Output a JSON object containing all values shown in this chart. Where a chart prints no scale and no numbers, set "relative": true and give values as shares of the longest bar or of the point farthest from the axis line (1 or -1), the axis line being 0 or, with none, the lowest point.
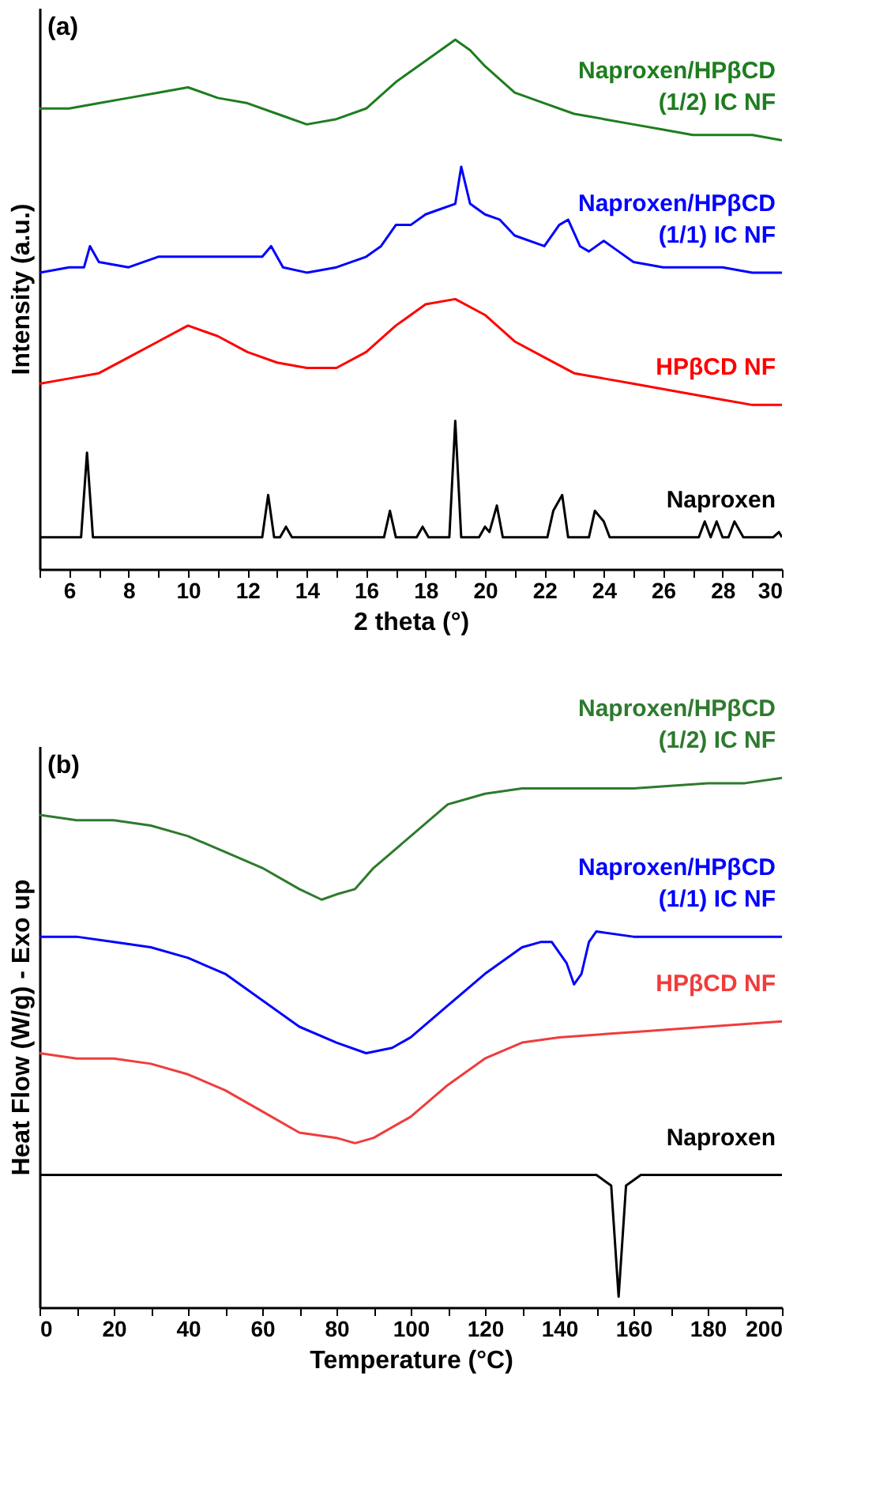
{
  "chart_data": [
    {
      "type": "line",
      "title": "(a)",
      "xlabel": "2 theta (°)",
      "ylabel": "Intensity (a.u.)",
      "relative": true,
      "grid": false,
      "xlim": [
        5,
        30
      ],
      "xticks": [
        {
          "value": 5,
          "label": null
        },
        6,
        {
          "value": 7,
          "label": null
        },
        8,
        {
          "value": 9,
          "label": null
        },
        10,
        {
          "value": 11,
          "label": null
        },
        12,
        {
          "value": 13,
          "label": null
        },
        14,
        {
          "value": 15,
          "label": null
        },
        16,
        {
          "value": 17,
          "label": null
        },
        18,
        {
          "value": 19,
          "label": null
        },
        20,
        {
          "value": 21,
          "label": null
        },
        22,
        {
          "value": 23,
          "label": null
        },
        24,
        {
          "value": 25,
          "label": null
        },
        26,
        {
          "value": 27,
          "label": null
        },
        28,
        {
          "value": 29,
          "label": null
        },
        30
      ],
      "series": [
        {
          "name": "Naproxen",
          "color": "#000000",
          "x": [
            5,
            6.4,
            6.6,
            6.8,
            12.5,
            12.7,
            12.9,
            13.1,
            13.3,
            13.5,
            16.6,
            16.8,
            17.0,
            17.7,
            17.9,
            18.1,
            18.8,
            19.0,
            19.2,
            19.8,
            20.0,
            20.15,
            20.4,
            20.6,
            22.1,
            22.3,
            22.6,
            22.8,
            23.5,
            23.7,
            24.0,
            24.2,
            27.2,
            27.4,
            27.6,
            27.8,
            28.0,
            28.2,
            28.4,
            28.7,
            29.7,
            29.9,
            30
          ],
          "values": [
            0.06,
            0.06,
            0.22,
            0.06,
            0.06,
            0.14,
            0.06,
            0.06,
            0.08,
            0.06,
            0.06,
            0.11,
            0.06,
            0.06,
            0.08,
            0.06,
            0.06,
            0.28,
            0.06,
            0.06,
            0.08,
            0.07,
            0.12,
            0.06,
            0.06,
            0.11,
            0.14,
            0.06,
            0.06,
            0.11,
            0.09,
            0.06,
            0.06,
            0.09,
            0.06,
            0.09,
            0.06,
            0.06,
            0.09,
            0.06,
            0.06,
            0.07,
            0.06
          ]
        },
        {
          "name": "HPβCD NF",
          "color": "#ff0000",
          "x": [
            5,
            6,
            7,
            8,
            9,
            10,
            11,
            12,
            13,
            14,
            15,
            16,
            17,
            18,
            19,
            20,
            21,
            22,
            23,
            24,
            25,
            26,
            27,
            28,
            29,
            30
          ],
          "values": [
            0.35,
            0.36,
            0.37,
            0.4,
            0.43,
            0.46,
            0.44,
            0.41,
            0.39,
            0.38,
            0.38,
            0.41,
            0.46,
            0.5,
            0.51,
            0.48,
            0.43,
            0.4,
            0.37,
            0.36,
            0.35,
            0.34,
            0.33,
            0.32,
            0.31,
            0.31
          ]
        },
        {
          "name": "Naproxen/HPβCD (1/1) IC NF",
          "color": "#0000ff",
          "x": [
            5,
            6,
            6.5,
            6.7,
            7,
            8,
            9,
            10,
            11,
            12,
            12.5,
            12.8,
            13.2,
            14,
            15,
            16,
            16.5,
            17,
            17.5,
            18,
            18.5,
            19,
            19.2,
            19.5,
            20,
            20.5,
            21,
            22,
            22.5,
            22.8,
            23.2,
            23.5,
            24,
            24.5,
            25,
            26,
            27,
            28,
            29,
            30
          ],
          "values": [
            0.56,
            0.57,
            0.57,
            0.61,
            0.58,
            0.57,
            0.59,
            0.59,
            0.59,
            0.59,
            0.59,
            0.61,
            0.57,
            0.56,
            0.57,
            0.59,
            0.61,
            0.65,
            0.65,
            0.67,
            0.68,
            0.69,
            0.76,
            0.69,
            0.67,
            0.66,
            0.63,
            0.61,
            0.65,
            0.66,
            0.61,
            0.6,
            0.62,
            0.6,
            0.58,
            0.57,
            0.57,
            0.57,
            0.56,
            0.56
          ]
        },
        {
          "name": "Naproxen/HPβCD (1/2) IC NF",
          "color": "#1e7d1e",
          "x": [
            5,
            6,
            7,
            8,
            9,
            10,
            11,
            12,
            13,
            14,
            15,
            16,
            17,
            18,
            19,
            19.5,
            20,
            21,
            22,
            23,
            24,
            25,
            26,
            27,
            28,
            29,
            30
          ],
          "values": [
            0.87,
            0.87,
            0.88,
            0.89,
            0.9,
            0.91,
            0.89,
            0.88,
            0.86,
            0.84,
            0.85,
            0.87,
            0.92,
            0.96,
            1.0,
            0.98,
            0.95,
            0.9,
            0.88,
            0.86,
            0.85,
            0.84,
            0.83,
            0.82,
            0.82,
            0.82,
            0.81
          ]
        }
      ]
    },
    {
      "type": "line",
      "title": "(b)",
      "xlabel": "Temperature (°C)",
      "ylabel": "Heat Flow (W/g) - Exo up",
      "relative": true,
      "grid": false,
      "xlim": [
        0,
        200
      ],
      "xticks": [
        0,
        {
          "value": 10,
          "label": null
        },
        20,
        {
          "value": 30,
          "label": null
        },
        40,
        {
          "value": 50,
          "label": null
        },
        60,
        {
          "value": 70,
          "label": null
        },
        80,
        {
          "value": 90,
          "label": null
        },
        100,
        {
          "value": 110,
          "label": null
        },
        120,
        {
          "value": 130,
          "label": null
        },
        140,
        {
          "value": 150,
          "label": null
        },
        160,
        {
          "value": 170,
          "label": null
        },
        180,
        {
          "value": 190,
          "label": null
        },
        200
      ],
      "series": [
        {
          "name": "Naproxen",
          "color": "#000000",
          "x": [
            0,
            100,
            140,
            150,
            154,
            156,
            158,
            162,
            200
          ],
          "values": [
            0.25,
            0.25,
            0.25,
            0.25,
            0.23,
            0.02,
            0.23,
            0.25,
            0.25
          ]
        },
        {
          "name": "HPβCD NF",
          "color": "#f03c3c",
          "x": [
            0,
            10,
            20,
            30,
            40,
            50,
            60,
            70,
            80,
            85,
            90,
            100,
            110,
            120,
            130,
            140,
            160,
            180,
            200
          ],
          "values": [
            0.48,
            0.47,
            0.47,
            0.46,
            0.44,
            0.41,
            0.37,
            0.33,
            0.32,
            0.31,
            0.32,
            0.36,
            0.42,
            0.47,
            0.5,
            0.51,
            0.52,
            0.53,
            0.54
          ]
        },
        {
          "name": "Naproxen/HPβCD (1/1) IC NF",
          "color": "#0000ff",
          "x": [
            0,
            10,
            20,
            30,
            40,
            50,
            60,
            70,
            80,
            88,
            95,
            100,
            110,
            120,
            130,
            135,
            138,
            142,
            144,
            146,
            148,
            150,
            160,
            180,
            200
          ],
          "values": [
            0.7,
            0.7,
            0.69,
            0.68,
            0.66,
            0.63,
            0.58,
            0.53,
            0.5,
            0.48,
            0.49,
            0.51,
            0.57,
            0.63,
            0.68,
            0.69,
            0.69,
            0.65,
            0.61,
            0.63,
            0.69,
            0.71,
            0.7,
            0.7,
            0.7
          ]
        },
        {
          "name": "Naproxen/HPβCD (1/2) IC NF",
          "color": "#2e7a2e",
          "x": [
            0,
            10,
            20,
            30,
            40,
            50,
            60,
            70,
            76,
            80,
            85,
            90,
            100,
            110,
            120,
            130,
            140,
            160,
            180,
            190,
            200
          ],
          "values": [
            0.93,
            0.92,
            0.92,
            0.91,
            0.89,
            0.86,
            0.83,
            0.79,
            0.77,
            0.78,
            0.79,
            0.83,
            0.89,
            0.95,
            0.97,
            0.98,
            0.98,
            0.98,
            0.99,
            0.99,
            1.0
          ]
        }
      ]
    }
  ]
}
